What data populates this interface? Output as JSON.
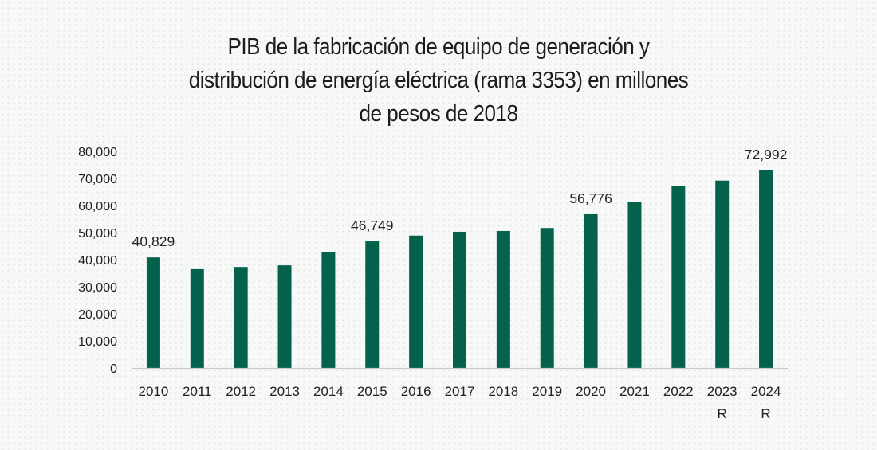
{
  "chart_data": {
    "type": "bar",
    "title_lines": [
      "PIB de la fabricación de equipo de generación y",
      "distribución de energía eléctrica (rama 3353) en millones",
      "de pesos de 2018"
    ],
    "title": "PIB de la fabricación de equipo de generación y distribución de energía eléctrica (rama 3353) en millones de pesos de 2018",
    "xlabel": "",
    "ylabel": "",
    "categories": [
      "2010",
      "2011",
      "2012",
      "2013",
      "2014",
      "2015",
      "2016",
      "2017",
      "2018",
      "2019",
      "2020",
      "2021",
      "2022",
      "2023",
      "2024"
    ],
    "category_sublabels": [
      "",
      "",
      "",
      "",
      "",
      "",
      "",
      "",
      "",
      "",
      "",
      "",
      "",
      "R",
      "R"
    ],
    "values": [
      40829,
      36500,
      37300,
      37900,
      42800,
      46749,
      48900,
      50300,
      50600,
      51700,
      56776,
      61200,
      67100,
      69200,
      72992
    ],
    "data_labels": [
      {
        "index": 0,
        "text": "40,829"
      },
      {
        "index": 5,
        "text": "46,749"
      },
      {
        "index": 10,
        "text": "56,776"
      },
      {
        "index": 14,
        "text": "72,992"
      }
    ],
    "ylim": [
      0,
      80000
    ],
    "yticks": [
      0,
      10000,
      20000,
      30000,
      40000,
      50000,
      60000,
      70000,
      80000
    ],
    "ytick_labels": [
      "0",
      "10,000",
      "20,000",
      "30,000",
      "40,000",
      "50,000",
      "60,000",
      "70,000",
      "80,000"
    ],
    "grid": false,
    "legend": "none",
    "colors": {
      "bar": "#04614b",
      "axis": "#c8c8c8",
      "text": "#222222"
    }
  }
}
